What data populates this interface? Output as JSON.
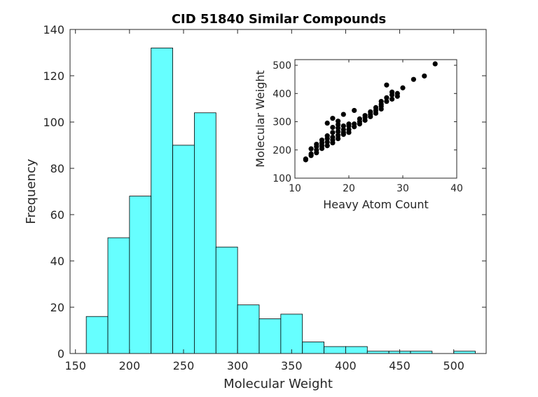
{
  "chart_data": [
    {
      "type": "bar",
      "title": "CID 51840 Similar Compounds",
      "xlabel": "Molecular Weight",
      "ylabel": "Frequency",
      "xlim": [
        145,
        530
      ],
      "ylim": [
        0,
        140
      ],
      "xticks": [
        150,
        200,
        250,
        300,
        350,
        400,
        450,
        500
      ],
      "yticks": [
        0,
        20,
        40,
        60,
        80,
        100,
        120,
        140
      ],
      "bin_width": 20,
      "bin_starts": [
        160,
        180,
        200,
        220,
        240,
        260,
        280,
        300,
        320,
        340,
        360,
        380,
        400,
        420,
        440,
        460,
        480,
        500
      ],
      "values": [
        16,
        50,
        68,
        132,
        90,
        104,
        46,
        21,
        15,
        17,
        5,
        3,
        3,
        1,
        1,
        1,
        0,
        1
      ],
      "bar_color": "#66FFFF",
      "grid": false
    },
    {
      "type": "scatter",
      "xlabel": "Heavy Atom Count",
      "ylabel": "Molecular Weight",
      "xlim": [
        10,
        40
      ],
      "ylim": [
        100,
        520
      ],
      "xticks": [
        10,
        20,
        30,
        40
      ],
      "yticks": [
        100,
        200,
        300,
        400,
        500
      ],
      "marker_color": "#000000",
      "points": [
        [
          12,
          165
        ],
        [
          12,
          168
        ],
        [
          13,
          180
        ],
        [
          13,
          186
        ],
        [
          13,
          204
        ],
        [
          14,
          190
        ],
        [
          14,
          200
        ],
        [
          14,
          212
        ],
        [
          14,
          220
        ],
        [
          15,
          205
        ],
        [
          15,
          215
        ],
        [
          15,
          225
        ],
        [
          15,
          235
        ],
        [
          16,
          215
        ],
        [
          16,
          228
        ],
        [
          16,
          240
        ],
        [
          16,
          250
        ],
        [
          16,
          295
        ],
        [
          17,
          225
        ],
        [
          17,
          235
        ],
        [
          17,
          245
        ],
        [
          17,
          262
        ],
        [
          17,
          280
        ],
        [
          17,
          312
        ],
        [
          18,
          240
        ],
        [
          18,
          252
        ],
        [
          18,
          265
        ],
        [
          18,
          278
        ],
        [
          18,
          290
        ],
        [
          18,
          302
        ],
        [
          19,
          255
        ],
        [
          19,
          262
        ],
        [
          19,
          272
        ],
        [
          19,
          285
        ],
        [
          19,
          326
        ],
        [
          20,
          262
        ],
        [
          20,
          272
        ],
        [
          20,
          285
        ],
        [
          20,
          292
        ],
        [
          21,
          282
        ],
        [
          21,
          292
        ],
        [
          21,
          340
        ],
        [
          22,
          292
        ],
        [
          22,
          300
        ],
        [
          22,
          310
        ],
        [
          23,
          305
        ],
        [
          23,
          315
        ],
        [
          23,
          322
        ],
        [
          24,
          318
        ],
        [
          24,
          326
        ],
        [
          24,
          335
        ],
        [
          25,
          330
        ],
        [
          25,
          340
        ],
        [
          25,
          350
        ],
        [
          26,
          345
        ],
        [
          26,
          355
        ],
        [
          26,
          362
        ],
        [
          26,
          372
        ],
        [
          27,
          372
        ],
        [
          27,
          385
        ],
        [
          27,
          430
        ],
        [
          28,
          380
        ],
        [
          28,
          395
        ],
        [
          28,
          405
        ],
        [
          29,
          390
        ],
        [
          29,
          400
        ],
        [
          30,
          420
        ],
        [
          32,
          450
        ],
        [
          34,
          462
        ],
        [
          36,
          505
        ]
      ]
    }
  ]
}
